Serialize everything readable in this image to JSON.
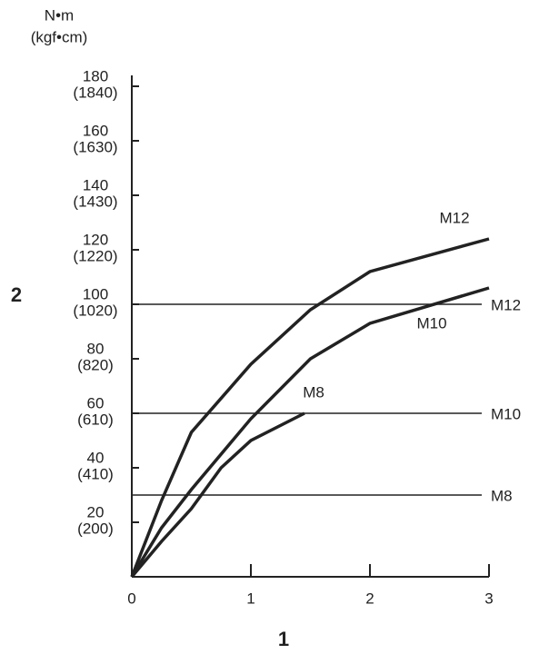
{
  "chart_data": {
    "type": "line",
    "unit_label": [
      "N•m",
      "(kgf•cm)"
    ],
    "y_axis_label": "2",
    "x_axis_label": "1",
    "xlim": [
      0,
      3
    ],
    "xticks": [
      0,
      1,
      2,
      3
    ],
    "ylim": [
      0,
      184
    ],
    "yticks": [
      {
        "value": 20,
        "label": [
          "20",
          "(200)"
        ]
      },
      {
        "value": 40,
        "label": [
          "40",
          "(410)"
        ]
      },
      {
        "value": 60,
        "label": [
          "60",
          "(610)"
        ]
      },
      {
        "value": 80,
        "label": [
          "80",
          "(820)"
        ]
      },
      {
        "value": 100,
        "label": [
          "100",
          "(1020)"
        ]
      },
      {
        "value": 120,
        "label": [
          "120",
          "(1220)"
        ]
      },
      {
        "value": 140,
        "label": [
          "140",
          "(1430)"
        ]
      },
      {
        "value": 160,
        "label": [
          "160",
          "(1630)"
        ]
      },
      {
        "value": 180,
        "label": [
          "180",
          "(1840)"
        ]
      }
    ],
    "series": [
      {
        "name": "M12",
        "color": "#222222",
        "x": [
          0,
          0.25,
          0.5,
          1,
          1.5,
          2,
          3
        ],
        "values": [
          0,
          28,
          53,
          78,
          98,
          112,
          124
        ]
      },
      {
        "name": "M10",
        "color": "#222222",
        "x": [
          0,
          0.25,
          0.5,
          1,
          1.5,
          2,
          3
        ],
        "values": [
          0,
          18,
          32,
          58,
          80,
          93,
          106
        ]
      },
      {
        "name": "M8",
        "color": "#222222",
        "x": [
          0,
          0.25,
          0.5,
          0.75,
          1,
          1.45
        ],
        "values": [
          0,
          13,
          25,
          40,
          50,
          60
        ]
      }
    ],
    "reference_lines": [
      {
        "name": "M12",
        "value": 100
      },
      {
        "name": "M10",
        "value": 60
      },
      {
        "name": "M8",
        "value": 30
      }
    ]
  }
}
